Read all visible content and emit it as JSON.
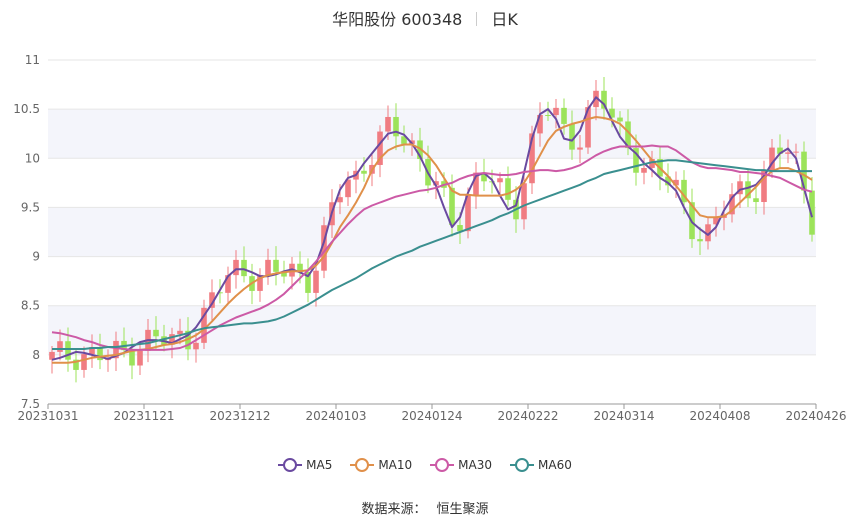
{
  "header": {
    "title": "华阳股份 600348",
    "period": "日K"
  },
  "source": {
    "label": "数据来源：",
    "value": "恒生聚源"
  },
  "colors": {
    "up": "#f07c82",
    "down": "#9ce35a",
    "band": "#f4f5fb",
    "grid": "#e6e6e6",
    "axis": "#999999"
  },
  "chart_data": {
    "type": "candlestick",
    "ylim": [
      7.5,
      11
    ],
    "yticks": [
      "7.5",
      "8",
      "8.5",
      "9",
      "9.5",
      "10",
      "10.5",
      "11"
    ],
    "xticks": [
      "20231031",
      "20231121",
      "20231212",
      "20240103",
      "20240124",
      "20240222",
      "20240314",
      "20240408",
      "20240426"
    ],
    "legend_position": "bottom",
    "series": [
      {
        "name": "MA5",
        "color": "#6a4aa0",
        "values": [
          7.95,
          7.97,
          8.0,
          8.03,
          8.02,
          8.0,
          7.98,
          7.96,
          7.99,
          8.02,
          8.08,
          8.13,
          8.15,
          8.15,
          8.14,
          8.12,
          8.16,
          8.2,
          8.28,
          8.4,
          8.52,
          8.66,
          8.8,
          8.87,
          8.87,
          8.84,
          8.8,
          8.8,
          8.82,
          8.85,
          8.87,
          8.84,
          8.8,
          8.92,
          9.15,
          9.45,
          9.68,
          9.8,
          9.83,
          9.95,
          10.05,
          10.15,
          10.25,
          10.27,
          10.24,
          10.15,
          10.02,
          9.85,
          9.72,
          9.5,
          9.3,
          9.4,
          9.65,
          9.82,
          9.85,
          9.78,
          9.62,
          9.48,
          9.52,
          9.85,
          10.2,
          10.45,
          10.5,
          10.4,
          10.2,
          10.18,
          10.28,
          10.5,
          10.62,
          10.55,
          10.38,
          10.22,
          10.12,
          10.05,
          9.95,
          9.88,
          9.8,
          9.75,
          9.67,
          9.5,
          9.35,
          9.28,
          9.22,
          9.3,
          9.47,
          9.6,
          9.68,
          9.7,
          9.73,
          9.82,
          9.95,
          10.05,
          10.1,
          10.0,
          9.7,
          9.4
        ]
      },
      {
        "name": "MA10",
        "color": "#e0904a",
        "values": [
          7.92,
          7.92,
          7.92,
          7.93,
          7.95,
          7.97,
          7.98,
          7.99,
          8.0,
          8.02,
          8.04,
          8.05,
          8.06,
          8.08,
          8.1,
          8.11,
          8.13,
          8.16,
          8.2,
          8.26,
          8.34,
          8.43,
          8.52,
          8.6,
          8.67,
          8.73,
          8.78,
          8.81,
          8.83,
          8.84,
          8.85,
          8.85,
          8.86,
          8.91,
          9.0,
          9.14,
          9.3,
          9.42,
          9.55,
          9.7,
          9.88,
          10.0,
          10.08,
          10.12,
          10.14,
          10.14,
          10.1,
          10.03,
          9.93,
          9.8,
          9.67,
          9.63,
          9.63,
          9.62,
          9.62,
          9.62,
          9.62,
          9.64,
          9.68,
          9.75,
          9.88,
          10.03,
          10.18,
          10.28,
          10.32,
          10.35,
          10.37,
          10.4,
          10.42,
          10.41,
          10.39,
          10.35,
          10.27,
          10.18,
          10.08,
          9.98,
          9.9,
          9.82,
          9.72,
          9.62,
          9.52,
          9.42,
          9.4,
          9.4,
          9.41,
          9.47,
          9.55,
          9.63,
          9.71,
          9.8,
          9.87,
          9.9,
          9.9,
          9.87,
          9.83,
          9.78
        ]
      },
      {
        "name": "MA30",
        "color": "#cc5aa6",
        "values": [
          8.23,
          8.22,
          8.2,
          8.18,
          8.15,
          8.13,
          8.1,
          8.08,
          8.07,
          8.06,
          8.05,
          8.05,
          8.05,
          8.05,
          8.05,
          8.06,
          8.07,
          8.1,
          8.15,
          8.2,
          8.25,
          8.3,
          8.34,
          8.38,
          8.41,
          8.44,
          8.47,
          8.51,
          8.56,
          8.62,
          8.7,
          8.78,
          8.86,
          8.95,
          9.05,
          9.15,
          9.24,
          9.33,
          9.41,
          9.48,
          9.52,
          9.55,
          9.58,
          9.61,
          9.63,
          9.65,
          9.67,
          9.68,
          9.7,
          9.73,
          9.75,
          9.79,
          9.82,
          9.84,
          9.85,
          9.84,
          9.83,
          9.83,
          9.84,
          9.86,
          9.87,
          9.88,
          9.88,
          9.87,
          9.88,
          9.9,
          9.93,
          9.98,
          10.03,
          10.07,
          10.1,
          10.12,
          10.12,
          10.12,
          10.12,
          10.13,
          10.12,
          10.12,
          10.08,
          10.02,
          9.96,
          9.92,
          9.9,
          9.9,
          9.89,
          9.88,
          9.86,
          9.86,
          9.85,
          9.84,
          9.82,
          9.8,
          9.76,
          9.72,
          9.68,
          9.66
        ]
      },
      {
        "name": "MA60",
        "color": "#3a8f8f",
        "values": [
          8.06,
          8.06,
          8.06,
          8.06,
          8.06,
          8.07,
          8.07,
          8.08,
          8.08,
          8.09,
          8.1,
          8.11,
          8.12,
          8.14,
          8.16,
          8.18,
          8.2,
          8.22,
          8.25,
          8.27,
          8.28,
          8.29,
          8.3,
          8.31,
          8.32,
          8.32,
          8.33,
          8.34,
          8.36,
          8.39,
          8.43,
          8.47,
          8.51,
          8.56,
          8.61,
          8.66,
          8.7,
          8.74,
          8.78,
          8.83,
          8.88,
          8.92,
          8.96,
          9.0,
          9.03,
          9.06,
          9.1,
          9.13,
          9.16,
          9.19,
          9.22,
          9.25,
          9.28,
          9.31,
          9.34,
          9.37,
          9.41,
          9.44,
          9.48,
          9.52,
          9.55,
          9.58,
          9.61,
          9.64,
          9.67,
          9.7,
          9.73,
          9.77,
          9.8,
          9.84,
          9.86,
          9.88,
          9.9,
          9.92,
          9.94,
          9.96,
          9.97,
          9.98,
          9.98,
          9.97,
          9.96,
          9.95,
          9.94,
          9.93,
          9.92,
          9.91,
          9.9,
          9.89,
          9.88,
          9.88,
          9.87,
          9.87,
          9.87,
          9.87,
          9.87,
          9.87
        ]
      }
    ]
  }
}
